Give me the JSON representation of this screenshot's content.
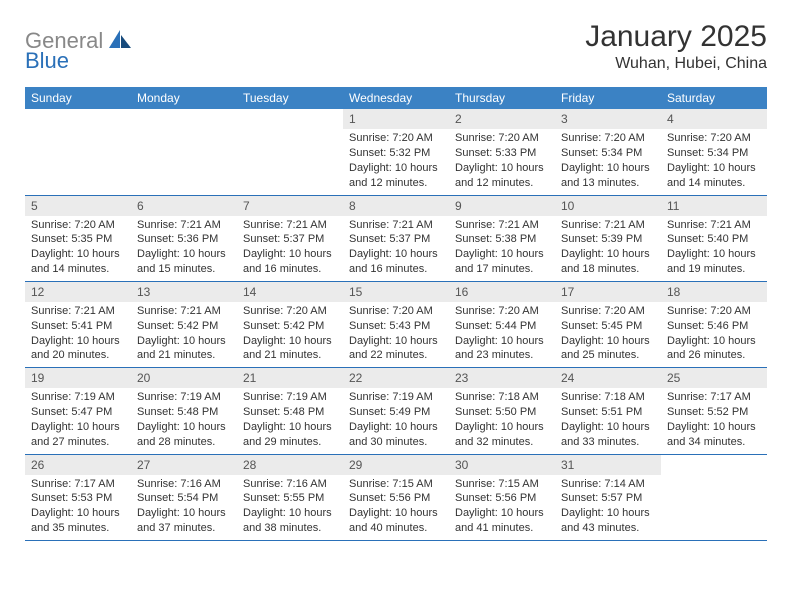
{
  "brand": {
    "part1": "General",
    "part2": "Blue"
  },
  "title": "January 2025",
  "location": "Wuhan, Hubei, China",
  "colors": {
    "header_bg": "#3b82c4",
    "header_text": "#ffffff",
    "daynum_bg": "#ebebeb",
    "row_border": "#2a70b8",
    "body_text": "#333333",
    "logo_gray": "#888888",
    "logo_blue": "#2a70b8",
    "background": "#ffffff"
  },
  "typography": {
    "title_fontsize": 30,
    "location_fontsize": 16,
    "dayhead_fontsize": 12,
    "daynum_fontsize": 12,
    "cell_fontsize": 11
  },
  "day_headers": [
    "Sunday",
    "Monday",
    "Tuesday",
    "Wednesday",
    "Thursday",
    "Friday",
    "Saturday"
  ],
  "weeks": [
    [
      null,
      null,
      null,
      {
        "n": "1",
        "sunrise": "Sunrise: 7:20 AM",
        "sunset": "Sunset: 5:32 PM",
        "day1": "Daylight: 10 hours",
        "day2": "and 12 minutes."
      },
      {
        "n": "2",
        "sunrise": "Sunrise: 7:20 AM",
        "sunset": "Sunset: 5:33 PM",
        "day1": "Daylight: 10 hours",
        "day2": "and 12 minutes."
      },
      {
        "n": "3",
        "sunrise": "Sunrise: 7:20 AM",
        "sunset": "Sunset: 5:34 PM",
        "day1": "Daylight: 10 hours",
        "day2": "and 13 minutes."
      },
      {
        "n": "4",
        "sunrise": "Sunrise: 7:20 AM",
        "sunset": "Sunset: 5:34 PM",
        "day1": "Daylight: 10 hours",
        "day2": "and 14 minutes."
      }
    ],
    [
      {
        "n": "5",
        "sunrise": "Sunrise: 7:20 AM",
        "sunset": "Sunset: 5:35 PM",
        "day1": "Daylight: 10 hours",
        "day2": "and 14 minutes."
      },
      {
        "n": "6",
        "sunrise": "Sunrise: 7:21 AM",
        "sunset": "Sunset: 5:36 PM",
        "day1": "Daylight: 10 hours",
        "day2": "and 15 minutes."
      },
      {
        "n": "7",
        "sunrise": "Sunrise: 7:21 AM",
        "sunset": "Sunset: 5:37 PM",
        "day1": "Daylight: 10 hours",
        "day2": "and 16 minutes."
      },
      {
        "n": "8",
        "sunrise": "Sunrise: 7:21 AM",
        "sunset": "Sunset: 5:37 PM",
        "day1": "Daylight: 10 hours",
        "day2": "and 16 minutes."
      },
      {
        "n": "9",
        "sunrise": "Sunrise: 7:21 AM",
        "sunset": "Sunset: 5:38 PM",
        "day1": "Daylight: 10 hours",
        "day2": "and 17 minutes."
      },
      {
        "n": "10",
        "sunrise": "Sunrise: 7:21 AM",
        "sunset": "Sunset: 5:39 PM",
        "day1": "Daylight: 10 hours",
        "day2": "and 18 minutes."
      },
      {
        "n": "11",
        "sunrise": "Sunrise: 7:21 AM",
        "sunset": "Sunset: 5:40 PM",
        "day1": "Daylight: 10 hours",
        "day2": "and 19 minutes."
      }
    ],
    [
      {
        "n": "12",
        "sunrise": "Sunrise: 7:21 AM",
        "sunset": "Sunset: 5:41 PM",
        "day1": "Daylight: 10 hours",
        "day2": "and 20 minutes."
      },
      {
        "n": "13",
        "sunrise": "Sunrise: 7:21 AM",
        "sunset": "Sunset: 5:42 PM",
        "day1": "Daylight: 10 hours",
        "day2": "and 21 minutes."
      },
      {
        "n": "14",
        "sunrise": "Sunrise: 7:20 AM",
        "sunset": "Sunset: 5:42 PM",
        "day1": "Daylight: 10 hours",
        "day2": "and 21 minutes."
      },
      {
        "n": "15",
        "sunrise": "Sunrise: 7:20 AM",
        "sunset": "Sunset: 5:43 PM",
        "day1": "Daylight: 10 hours",
        "day2": "and 22 minutes."
      },
      {
        "n": "16",
        "sunrise": "Sunrise: 7:20 AM",
        "sunset": "Sunset: 5:44 PM",
        "day1": "Daylight: 10 hours",
        "day2": "and 23 minutes."
      },
      {
        "n": "17",
        "sunrise": "Sunrise: 7:20 AM",
        "sunset": "Sunset: 5:45 PM",
        "day1": "Daylight: 10 hours",
        "day2": "and 25 minutes."
      },
      {
        "n": "18",
        "sunrise": "Sunrise: 7:20 AM",
        "sunset": "Sunset: 5:46 PM",
        "day1": "Daylight: 10 hours",
        "day2": "and 26 minutes."
      }
    ],
    [
      {
        "n": "19",
        "sunrise": "Sunrise: 7:19 AM",
        "sunset": "Sunset: 5:47 PM",
        "day1": "Daylight: 10 hours",
        "day2": "and 27 minutes."
      },
      {
        "n": "20",
        "sunrise": "Sunrise: 7:19 AM",
        "sunset": "Sunset: 5:48 PM",
        "day1": "Daylight: 10 hours",
        "day2": "and 28 minutes."
      },
      {
        "n": "21",
        "sunrise": "Sunrise: 7:19 AM",
        "sunset": "Sunset: 5:48 PM",
        "day1": "Daylight: 10 hours",
        "day2": "and 29 minutes."
      },
      {
        "n": "22",
        "sunrise": "Sunrise: 7:19 AM",
        "sunset": "Sunset: 5:49 PM",
        "day1": "Daylight: 10 hours",
        "day2": "and 30 minutes."
      },
      {
        "n": "23",
        "sunrise": "Sunrise: 7:18 AM",
        "sunset": "Sunset: 5:50 PM",
        "day1": "Daylight: 10 hours",
        "day2": "and 32 minutes."
      },
      {
        "n": "24",
        "sunrise": "Sunrise: 7:18 AM",
        "sunset": "Sunset: 5:51 PM",
        "day1": "Daylight: 10 hours",
        "day2": "and 33 minutes."
      },
      {
        "n": "25",
        "sunrise": "Sunrise: 7:17 AM",
        "sunset": "Sunset: 5:52 PM",
        "day1": "Daylight: 10 hours",
        "day2": "and 34 minutes."
      }
    ],
    [
      {
        "n": "26",
        "sunrise": "Sunrise: 7:17 AM",
        "sunset": "Sunset: 5:53 PM",
        "day1": "Daylight: 10 hours",
        "day2": "and 35 minutes."
      },
      {
        "n": "27",
        "sunrise": "Sunrise: 7:16 AM",
        "sunset": "Sunset: 5:54 PM",
        "day1": "Daylight: 10 hours",
        "day2": "and 37 minutes."
      },
      {
        "n": "28",
        "sunrise": "Sunrise: 7:16 AM",
        "sunset": "Sunset: 5:55 PM",
        "day1": "Daylight: 10 hours",
        "day2": "and 38 minutes."
      },
      {
        "n": "29",
        "sunrise": "Sunrise: 7:15 AM",
        "sunset": "Sunset: 5:56 PM",
        "day1": "Daylight: 10 hours",
        "day2": "and 40 minutes."
      },
      {
        "n": "30",
        "sunrise": "Sunrise: 7:15 AM",
        "sunset": "Sunset: 5:56 PM",
        "day1": "Daylight: 10 hours",
        "day2": "and 41 minutes."
      },
      {
        "n": "31",
        "sunrise": "Sunrise: 7:14 AM",
        "sunset": "Sunset: 5:57 PM",
        "day1": "Daylight: 10 hours",
        "day2": "and 43 minutes."
      },
      null
    ]
  ]
}
